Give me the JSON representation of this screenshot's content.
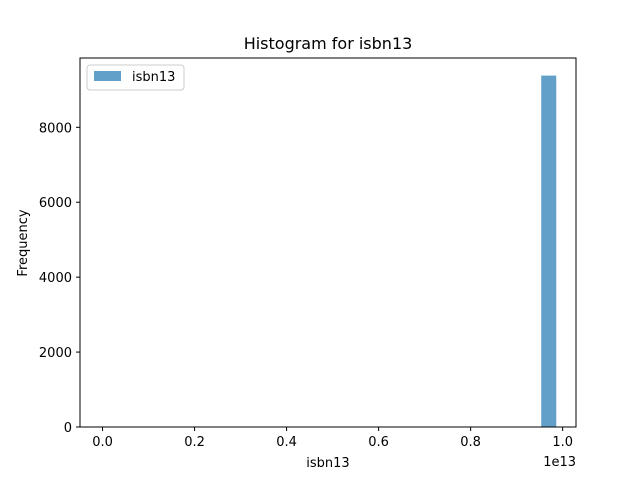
{
  "chart_data": {
    "type": "bar",
    "title": "Histogram for isbn13",
    "xlabel": "isbn13",
    "ylabel": "Frequency",
    "x_offset_label": "1e13",
    "xlim": [
      -0.049,
      1.029
    ],
    "ylim": [
      0,
      9850
    ],
    "x_ticks": [
      0.0,
      0.2,
      0.4,
      0.6,
      0.8,
      1.0
    ],
    "x_tick_labels": [
      "0.0",
      "0.2",
      "0.4",
      "0.6",
      "0.8",
      "1.0"
    ],
    "y_ticks": [
      0,
      2000,
      4000,
      6000,
      8000
    ],
    "y_tick_labels": [
      "0",
      "2000",
      "4000",
      "6000",
      "8000"
    ],
    "bin_width": 0.0327,
    "bins": [
      {
        "x_start": 0.0,
        "value": 1
      },
      {
        "x_start": 0.3006,
        "value": 13
      },
      {
        "x_start": 0.9534,
        "value": 9380
      }
    ],
    "color": "#1f77b4",
    "alpha": 0.7,
    "legend": {
      "entries": [
        "isbn13"
      ],
      "placement": "upper-left"
    }
  }
}
